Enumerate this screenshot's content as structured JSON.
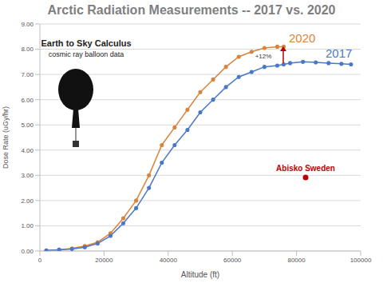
{
  "chart_data": {
    "type": "line",
    "title": "Arctic Radiation Measurements -- 2017 vs. 2020",
    "x_label": "Altitude (ft)",
    "y_label": "Dose Rate (uGy/hr)",
    "annotations": [
      "Earth to Sky Calculus",
      "cosmic ray balloon data",
      "+12%",
      "Abisko Sweden"
    ],
    "x": [
      2000,
      6000,
      10000,
      14000,
      18000,
      22000,
      26000,
      30000,
      34000,
      38000,
      42000,
      46000,
      50000,
      54000,
      58000,
      62000,
      66000,
      70000,
      74000,
      76000,
      78000,
      82000,
      86000,
      90000,
      94000,
      97000
    ],
    "series": [
      {
        "name": "2020",
        "color": "#d9843c",
        "marker": "circle",
        "values": [
          0.02,
          0.05,
          0.1,
          0.2,
          0.35,
          0.7,
          1.3,
          2.0,
          3.0,
          4.2,
          4.9,
          5.6,
          6.3,
          6.8,
          7.3,
          7.7,
          7.9,
          8.05,
          8.1,
          8.1,
          null,
          null,
          null,
          null,
          null,
          null
        ]
      },
      {
        "name": "2017",
        "color": "#4a78c8",
        "marker": "circle",
        "values": [
          0.02,
          0.05,
          0.08,
          0.15,
          0.3,
          0.6,
          1.1,
          1.7,
          2.5,
          3.5,
          4.2,
          4.8,
          5.5,
          6.0,
          6.5,
          6.9,
          7.1,
          7.3,
          7.35,
          7.4,
          7.45,
          7.5,
          7.48,
          7.45,
          7.42,
          7.4
        ]
      }
    ],
    "xlim": [
      0,
      100000
    ],
    "xticks": [
      0,
      20000,
      40000,
      60000,
      80000,
      100000
    ],
    "ylim": [
      0,
      9
    ],
    "yticks": [
      {
        "value": 0,
        "label": "0.00"
      },
      {
        "value": 1,
        "label": "1.00"
      },
      {
        "value": 2,
        "label": "2.00"
      },
      {
        "value": 3,
        "label": "3.00"
      },
      {
        "value": 4,
        "label": "4.00"
      },
      {
        "value": 5,
        "label": "5.00"
      },
      {
        "value": 6,
        "label": "6.00"
      },
      {
        "value": 7,
        "label": "7.00"
      },
      {
        "value": 8,
        "label": "8.00"
      },
      {
        "value": 9,
        "label": "9.00"
      }
    ],
    "grid": true
  }
}
